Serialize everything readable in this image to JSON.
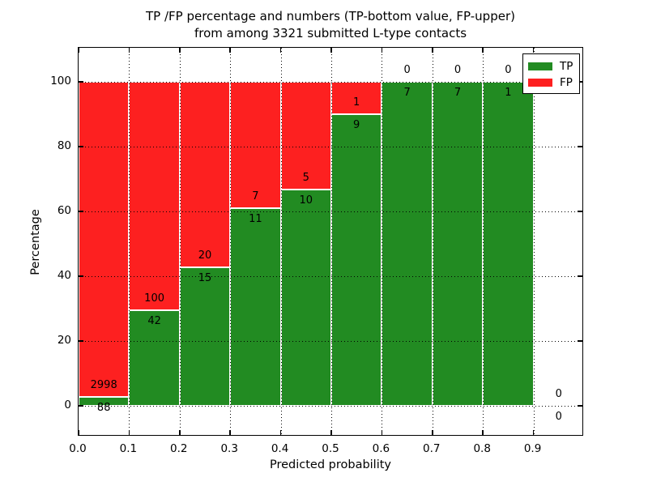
{
  "title": {
    "line1": "TP /FP percentage and numbers (TP-bottom value, FP-upper)",
    "line2": "from among 3321 submitted L-type contacts"
  },
  "axes": {
    "xlabel": "Predicted probability",
    "ylabel": "Percentage",
    "x_tick_labels": [
      "0.0",
      "0.1",
      "0.2",
      "0.3",
      "0.4",
      "0.5",
      "0.6",
      "0.7",
      "0.8",
      "0.9"
    ],
    "y_tick_labels": [
      "0",
      "20",
      "40",
      "60",
      "80",
      "100"
    ]
  },
  "legend": {
    "items": [
      {
        "label": "TP",
        "color": "#228b22"
      },
      {
        "label": "FP",
        "color": "#fd2020"
      }
    ]
  },
  "colors": {
    "tp": "#228b22",
    "fp": "#fd2020",
    "bar_edge": "#ffffff",
    "grid": "#000000",
    "frame": "#000000",
    "background": "#ffffff",
    "text": "#000000"
  },
  "chart_data": {
    "type": "bar",
    "stacked": true,
    "normalized_to_percent": true,
    "title": "TP /FP percentage and numbers (TP-bottom value, FP-upper) from among 3321 submitted L-type contacts",
    "xlabel": "Predicted probability",
    "ylabel": "Percentage",
    "xlim": [
      0.0,
      1.0
    ],
    "ylim": [
      -9.5,
      110.5
    ],
    "grid": true,
    "grid_style": "dotted",
    "legend_position": "upper right",
    "total_submitted_contacts": 3321,
    "bin_width": 0.1,
    "categories": [
      "0.0-0.1",
      "0.1-0.2",
      "0.2-0.3",
      "0.3-0.4",
      "0.4-0.5",
      "0.5-0.6",
      "0.6-0.7",
      "0.7-0.8",
      "0.8-0.9",
      "0.9-1.0"
    ],
    "series": [
      {
        "name": "TP",
        "color": "#228b22",
        "values": [
          88,
          42,
          15,
          11,
          10,
          9,
          7,
          7,
          1,
          0
        ]
      },
      {
        "name": "FP",
        "color": "#fd2020",
        "values": [
          2998,
          100,
          20,
          7,
          5,
          1,
          0,
          0,
          0,
          0
        ]
      }
    ],
    "bins": [
      {
        "range": [
          0.0,
          0.1
        ],
        "tp": 88,
        "fp": 2998,
        "tp_pct": 2.85,
        "fp_pct": 97.15
      },
      {
        "range": [
          0.1,
          0.2
        ],
        "tp": 42,
        "fp": 100,
        "tp_pct": 29.58,
        "fp_pct": 70.42
      },
      {
        "range": [
          0.2,
          0.3
        ],
        "tp": 15,
        "fp": 20,
        "tp_pct": 42.86,
        "fp_pct": 57.14
      },
      {
        "range": [
          0.3,
          0.4
        ],
        "tp": 11,
        "fp": 7,
        "tp_pct": 61.11,
        "fp_pct": 38.89
      },
      {
        "range": [
          0.4,
          0.5
        ],
        "tp": 10,
        "fp": 5,
        "tp_pct": 66.67,
        "fp_pct": 33.33
      },
      {
        "range": [
          0.5,
          0.6
        ],
        "tp": 9,
        "fp": 1,
        "tp_pct": 90.0,
        "fp_pct": 10.0
      },
      {
        "range": [
          0.6,
          0.7
        ],
        "tp": 7,
        "fp": 0,
        "tp_pct": 100.0,
        "fp_pct": 0.0
      },
      {
        "range": [
          0.7,
          0.8
        ],
        "tp": 7,
        "fp": 0,
        "tp_pct": 100.0,
        "fp_pct": 0.0
      },
      {
        "range": [
          0.8,
          0.9
        ],
        "tp": 1,
        "fp": 0,
        "tp_pct": 100.0,
        "fp_pct": 0.0
      },
      {
        "range": [
          0.9,
          1.0
        ],
        "tp": 0,
        "fp": 0,
        "tp_pct": 0.0,
        "fp_pct": 0.0
      }
    ]
  }
}
